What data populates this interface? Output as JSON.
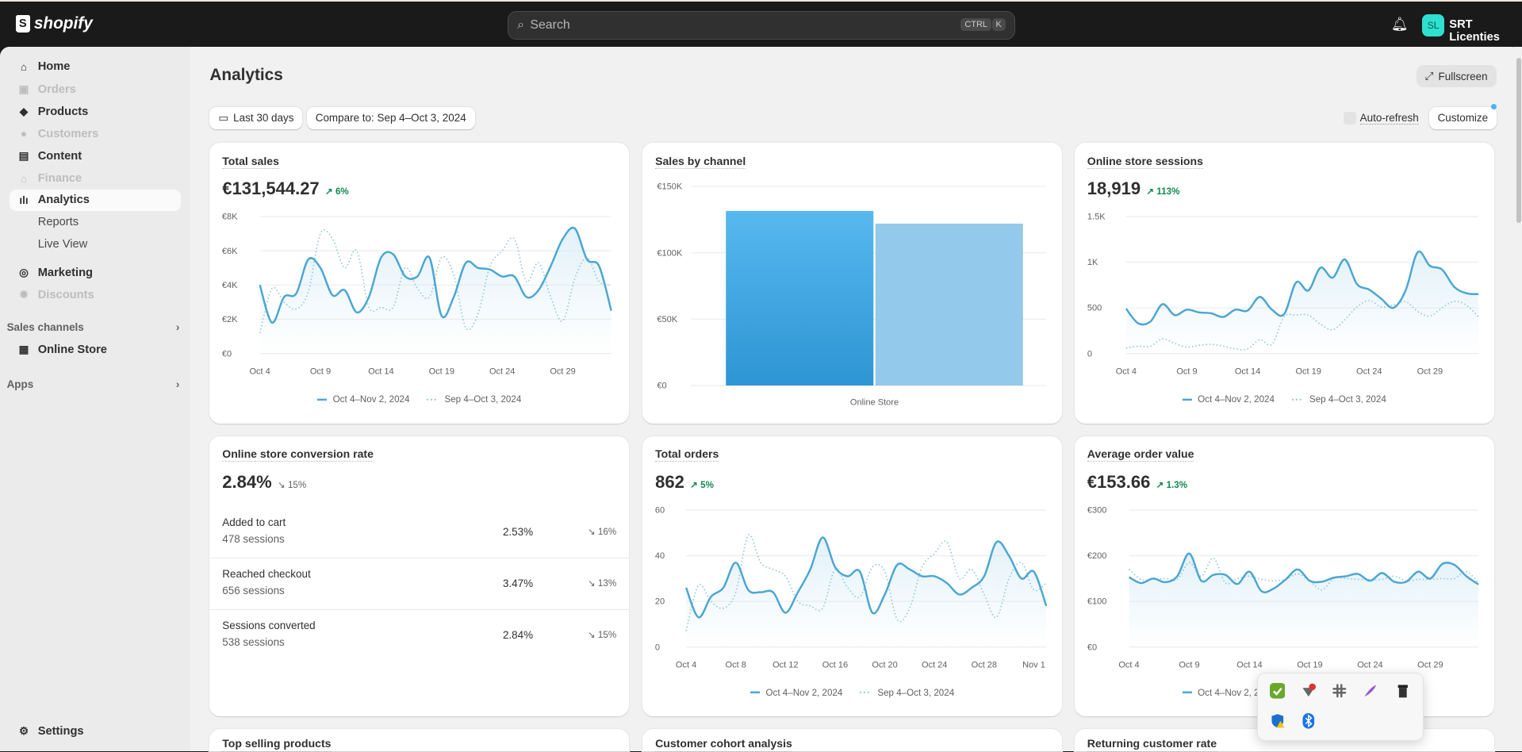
{
  "topbar": {
    "brand": "shopify",
    "search_placeholder": "Search",
    "kbd_ctrl": "CTRL",
    "kbd_k": "K",
    "avatar_initials": "SL",
    "store_name": "SRT Licenties"
  },
  "sidebar": {
    "items": [
      {
        "label": "Home",
        "icon": "home-icon",
        "state": "normal"
      },
      {
        "label": "Orders",
        "icon": "inbox-icon",
        "state": "disabled"
      },
      {
        "label": "Products",
        "icon": "tag-icon",
        "state": "normal"
      },
      {
        "label": "Customers",
        "icon": "person-icon",
        "state": "disabled"
      },
      {
        "label": "Content",
        "icon": "image-icon",
        "state": "normal"
      },
      {
        "label": "Finance",
        "icon": "bank-icon",
        "state": "disabled"
      },
      {
        "label": "Analytics",
        "icon": "bar-chart-icon",
        "state": "active"
      },
      {
        "label": "Reports",
        "state": "sub"
      },
      {
        "label": "Live View",
        "state": "sub"
      },
      {
        "label": "Marketing",
        "icon": "target-icon",
        "state": "normal"
      },
      {
        "label": "Discounts",
        "icon": "discount-icon",
        "state": "disabled"
      }
    ],
    "sales_channels": "Sales channels",
    "online_store": "Online Store",
    "apps": "Apps",
    "settings": "Settings"
  },
  "page": {
    "title": "Analytics",
    "fullscreen": "Fullscreen",
    "date_range": "Last 30 days",
    "compare": "Compare to: Sep 4–Oct 3, 2024",
    "auto_refresh": "Auto-refresh",
    "customize": "Customize"
  },
  "legend": {
    "current": "Oct 4–Nov 2, 2024",
    "previous": "Sep 4–Oct 3, 2024"
  },
  "cards": {
    "total_sales": {
      "title": "Total sales",
      "value": "€131,544.27",
      "delta": "6%",
      "direction": "up"
    },
    "sales_by_channel": {
      "title": "Sales by channel"
    },
    "sessions": {
      "title": "Online store sessions",
      "value": "18,919",
      "delta": "113%",
      "direction": "up"
    },
    "conversion": {
      "title": "Online store conversion rate",
      "value": "2.84%",
      "delta": "15%",
      "direction": "down",
      "rows": [
        {
          "label": "Added to cart",
          "sessions": "478 sessions",
          "rate": "2.53%",
          "delta": "16%"
        },
        {
          "label": "Reached checkout",
          "sessions": "656 sessions",
          "rate": "3.47%",
          "delta": "13%"
        },
        {
          "label": "Sessions converted",
          "sessions": "538 sessions",
          "rate": "2.84%",
          "delta": "15%"
        }
      ]
    },
    "orders": {
      "title": "Total orders",
      "value": "862",
      "delta": "5%",
      "direction": "up"
    },
    "aov": {
      "title": "Average order value",
      "value": "€153.66",
      "delta": "1.3%",
      "direction": "up"
    },
    "top_products": {
      "title": "Top selling products"
    },
    "cohort": {
      "title": "Customer cohort analysis"
    },
    "returning": {
      "title": "Returning customer rate"
    }
  },
  "colors": {
    "current": "#4aa6d3",
    "previous": "#8cc3d6",
    "bar_current": "#3aa3e3",
    "bar_previous": "#93c9ea",
    "positive": "#0e8a4f",
    "avatar": "#2ee0d0"
  },
  "tray_icons": [
    "nvidia-check-icon",
    "network-error-icon",
    "slack-icon",
    "feather-icon",
    "trash-icon",
    "defender-warning-icon",
    "bluetooth-icon"
  ],
  "chart_data": [
    {
      "id": "total_sales",
      "type": "line",
      "yticks": [
        "€0",
        "€2K",
        "€4K",
        "€6K",
        "€8K"
      ],
      "ylim": [
        0,
        8000
      ],
      "xticks": [
        "Oct 4",
        "Oct 9",
        "Oct 14",
        "Oct 19",
        "Oct 24",
        "Oct 29"
      ],
      "xtick_index": [
        0,
        5,
        10,
        15,
        20,
        25
      ],
      "series": [
        {
          "name": "Oct 4–Nov 2, 2024",
          "values": [
            4000,
            1800,
            3300,
            3500,
            5500,
            5000,
            3400,
            3700,
            2400,
            3300,
            5600,
            5800,
            4500,
            4500,
            5600,
            2200,
            3300,
            5300,
            5000,
            4900,
            4500,
            4500,
            3300,
            3700,
            5100,
            6700,
            7300,
            5500,
            5100,
            2500
          ]
        },
        {
          "name": "Sep 4–Oct 3, 2024",
          "values": [
            1200,
            3800,
            3000,
            2600,
            3600,
            7000,
            6700,
            5000,
            6000,
            2700,
            2700,
            2700,
            5000,
            3800,
            3300,
            5600,
            4600,
            1500,
            2300,
            5100,
            6000,
            6700,
            4200,
            5300,
            3300,
            1900,
            4400,
            5600,
            4200,
            4000
          ]
        }
      ]
    },
    {
      "id": "sales_by_channel",
      "type": "bar",
      "categories": [
        "Online Store"
      ],
      "yticks": [
        "€0",
        "€50K",
        "€100K",
        "€150K"
      ],
      "ylim": [
        0,
        150000
      ],
      "series": [
        {
          "values": [
            131544
          ]
        },
        {
          "values": [
            122000
          ]
        }
      ]
    },
    {
      "id": "sessions",
      "type": "line",
      "yticks": [
        "0",
        "500",
        "1K",
        "1.5K"
      ],
      "ylim": [
        0,
        1500
      ],
      "xticks": [
        "Oct 4",
        "Oct 9",
        "Oct 14",
        "Oct 19",
        "Oct 24",
        "Oct 29"
      ],
      "xtick_index": [
        0,
        5,
        10,
        15,
        20,
        25
      ],
      "series": [
        {
          "name": "Oct 4–Nov 2, 2024",
          "values": [
            490,
            330,
            350,
            540,
            420,
            480,
            450,
            440,
            400,
            480,
            470,
            620,
            480,
            430,
            780,
            690,
            940,
            830,
            1030,
            760,
            700,
            600,
            500,
            690,
            1110,
            960,
            920,
            730,
            660,
            650
          ]
        },
        {
          "name": "Sep 4–Oct 3, 2024",
          "values": [
            60,
            80,
            80,
            160,
            110,
            70,
            90,
            100,
            80,
            50,
            50,
            150,
            100,
            400,
            420,
            420,
            320,
            260,
            370,
            510,
            580,
            510,
            530,
            570,
            460,
            410,
            500,
            570,
            530,
            400
          ]
        }
      ]
    },
    {
      "id": "orders",
      "type": "line",
      "yticks": [
        "0",
        "20",
        "40",
        "60"
      ],
      "ylim": [
        0,
        60
      ],
      "xticks": [
        "Oct 4",
        "Oct 8",
        "Oct 12",
        "Oct 16",
        "Oct 20",
        "Oct 24",
        "Oct 28",
        "Nov 1"
      ],
      "xtick_index": [
        0,
        4,
        8,
        12,
        16,
        20,
        24,
        28
      ],
      "series": [
        {
          "name": "Oct 4–Nov 2, 2024",
          "values": [
            26,
            13,
            22,
            26,
            37,
            25,
            24,
            24,
            15,
            24,
            34,
            48,
            35,
            31,
            33,
            15,
            23,
            36,
            34,
            31,
            31,
            28,
            23,
            26,
            31,
            46,
            40,
            30,
            33,
            18
          ]
        },
        {
          "name": "Sep 4–Oct 3, 2024",
          "values": [
            7,
            27,
            20,
            17,
            24,
            49,
            37,
            34,
            31,
            20,
            18,
            17,
            34,
            26,
            22,
            35,
            33,
            12,
            17,
            35,
            41,
            46,
            30,
            34,
            23,
            13,
            30,
            37,
            25,
            28
          ]
        }
      ]
    },
    {
      "id": "aov",
      "type": "line",
      "yticks": [
        "€0",
        "€100",
        "€200",
        "€300"
      ],
      "ylim": [
        0,
        300
      ],
      "xticks": [
        "Oct 4",
        "Oct 9",
        "Oct 14",
        "Oct 19",
        "Oct 24",
        "Oct 29"
      ],
      "xtick_index": [
        0,
        5,
        10,
        15,
        20,
        25
      ],
      "series": [
        {
          "name": "Oct 4–Nov 2, 2024",
          "values": [
            153,
            140,
            150,
            142,
            155,
            205,
            145,
            158,
            158,
            138,
            165,
            122,
            128,
            148,
            170,
            145,
            143,
            152,
            155,
            160,
            145,
            162,
            143,
            143,
            165,
            150,
            182,
            180,
            155,
            137
          ]
        },
        {
          "name": "Sep 4–Oct 3, 2024",
          "values": [
            170,
            148,
            148,
            150,
            148,
            185,
            155,
            195,
            140,
            150,
            155,
            148,
            145,
            148,
            160,
            145,
            125,
            150,
            150,
            148,
            148,
            148,
            155,
            145,
            148,
            148,
            150,
            150,
            165,
            140
          ]
        }
      ]
    }
  ]
}
